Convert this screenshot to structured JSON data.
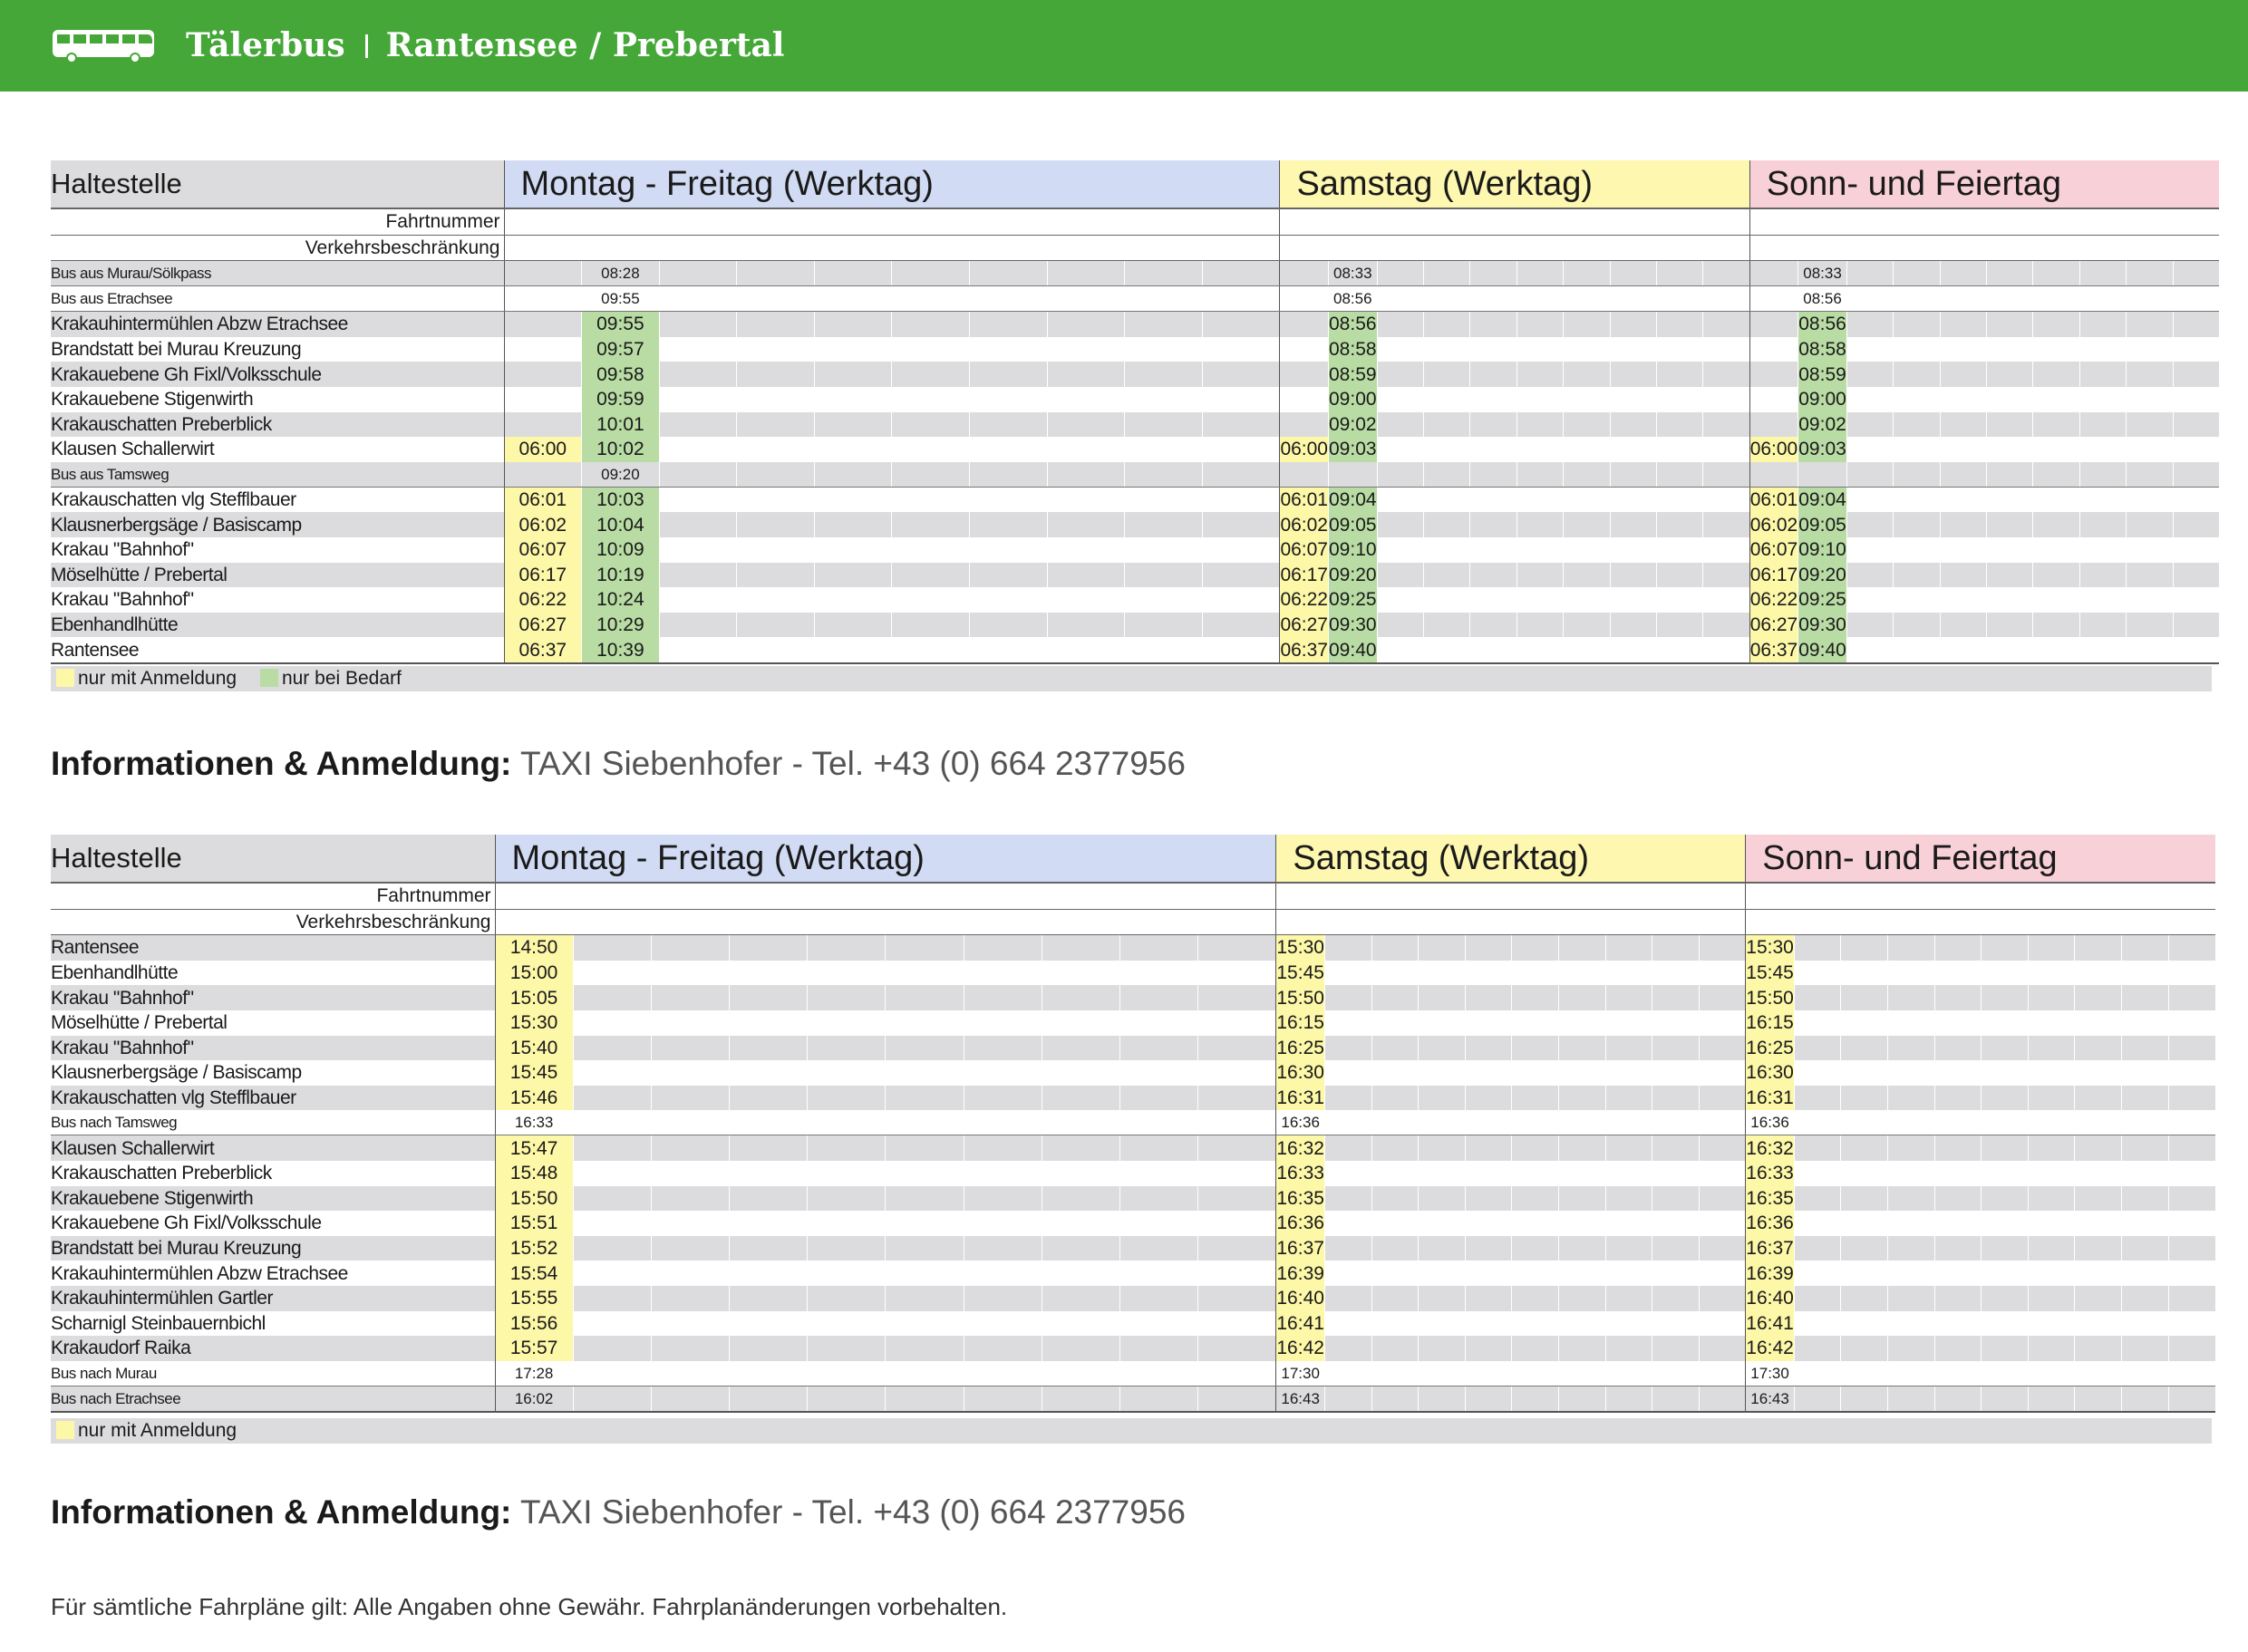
{
  "header": {
    "brand": "Tälerbus",
    "route": "Rantensee / Prebertal"
  },
  "colors": {
    "green": "#44a737",
    "mf": "#d2dbf4",
    "sa": "#fdf7b0",
    "so": "#f8d0d8",
    "yellow": "#fdf7a8",
    "lightgreen": "#b9dca4"
  },
  "labels": {
    "haltestelle": "Haltestelle",
    "fahrtnummer": "Fahrtnummer",
    "verkehrsbeschraenkung": "Verkehrsbeschränkung"
  },
  "days": {
    "mf": "Montag - Freitag (Werktag)",
    "sa": "Samstag (Werktag)",
    "so": "Sonn- und Feiertag"
  },
  "table1": {
    "rows": [
      {
        "stop": "Bus aus Murau/Sölkpass",
        "kind": "bus",
        "mf": [
          "",
          "08:28"
        ],
        "sa": [
          "",
          "08:33"
        ],
        "so": [
          "",
          "08:33"
        ]
      },
      {
        "stop": "Bus aus Etrachsee",
        "kind": "bus",
        "mf": [
          "",
          "09:55"
        ],
        "sa": [
          "",
          "08:56"
        ],
        "so": [
          "",
          "08:56"
        ]
      },
      {
        "stop": "Krakauhintermühlen Abzw Etrachsee",
        "kind": "stop",
        "mf": [
          "",
          "09:55"
        ],
        "sa": [
          "",
          "08:56"
        ],
        "so": [
          "",
          "08:56"
        ]
      },
      {
        "stop": "Brandstatt bei Murau Kreuzung",
        "kind": "stop",
        "mf": [
          "",
          "09:57"
        ],
        "sa": [
          "",
          "08:58"
        ],
        "so": [
          "",
          "08:58"
        ]
      },
      {
        "stop": "Krakauebene Gh Fixl/Volksschule",
        "kind": "stop",
        "mf": [
          "",
          "09:58"
        ],
        "sa": [
          "",
          "08:59"
        ],
        "so": [
          "",
          "08:59"
        ]
      },
      {
        "stop": "Krakauebene Stigenwirth",
        "kind": "stop",
        "mf": [
          "",
          "09:59"
        ],
        "sa": [
          "",
          "09:00"
        ],
        "so": [
          "",
          "09:00"
        ]
      },
      {
        "stop": "Krakauschatten Preberblick",
        "kind": "stop",
        "mf": [
          "",
          "10:01"
        ],
        "sa": [
          "",
          "09:02"
        ],
        "so": [
          "",
          "09:02"
        ]
      },
      {
        "stop": "Klausen Schallerwirt",
        "kind": "stop",
        "mf": [
          "06:00",
          "10:02"
        ],
        "sa": [
          "06:00",
          "09:03"
        ],
        "so": [
          "06:00",
          "09:03"
        ]
      },
      {
        "stop": "Bus aus Tamsweg",
        "kind": "bus",
        "mf": [
          "",
          "09:20"
        ],
        "sa": [
          "",
          ""
        ],
        "so": [
          "",
          ""
        ]
      },
      {
        "stop": "Krakauschatten vlg Stefflbauer",
        "kind": "stop",
        "mf": [
          "06:01",
          "10:03"
        ],
        "sa": [
          "06:01",
          "09:04"
        ],
        "so": [
          "06:01",
          "09:04"
        ]
      },
      {
        "stop": "Klausnerbergsäge / Basiscamp",
        "kind": "stop",
        "mf": [
          "06:02",
          "10:04"
        ],
        "sa": [
          "06:02",
          "09:05"
        ],
        "so": [
          "06:02",
          "09:05"
        ]
      },
      {
        "stop": "Krakau \"Bahnhof\"",
        "kind": "stop",
        "mf": [
          "06:07",
          "10:09"
        ],
        "sa": [
          "06:07",
          "09:10"
        ],
        "so": [
          "06:07",
          "09:10"
        ]
      },
      {
        "stop": "Möselhütte / Prebertal",
        "kind": "stop",
        "mf": [
          "06:17",
          "10:19"
        ],
        "sa": [
          "06:17",
          "09:20"
        ],
        "so": [
          "06:17",
          "09:20"
        ]
      },
      {
        "stop": "Krakau \"Bahnhof\"",
        "kind": "stop",
        "mf": [
          "06:22",
          "10:24"
        ],
        "sa": [
          "06:22",
          "09:25"
        ],
        "so": [
          "06:22",
          "09:25"
        ]
      },
      {
        "stop": "Ebenhandlhütte",
        "kind": "stop",
        "mf": [
          "06:27",
          "10:29"
        ],
        "sa": [
          "06:27",
          "09:30"
        ],
        "so": [
          "06:27",
          "09:30"
        ]
      },
      {
        "stop": "Rantensee",
        "kind": "stop",
        "mf": [
          "06:37",
          "10:39"
        ],
        "sa": [
          "06:37",
          "09:40"
        ],
        "so": [
          "06:37",
          "09:40"
        ]
      }
    ],
    "legend": {
      "anmeldung": "nur mit Anmeldung",
      "bedarf": "nur bei Bedarf"
    }
  },
  "info": {
    "label": "Informationen & Anmeldung:",
    "text": "TAXI Siebenhofer  -  Tel. +43 (0) 664 2377956"
  },
  "table2": {
    "rows": [
      {
        "stop": "Rantensee",
        "kind": "stop",
        "mf": "14:50",
        "sa": "15:30",
        "so": "15:30"
      },
      {
        "stop": "Ebenhandlhütte",
        "kind": "stop",
        "mf": "15:00",
        "sa": "15:45",
        "so": "15:45"
      },
      {
        "stop": "Krakau \"Bahnhof\"",
        "kind": "stop",
        "mf": "15:05",
        "sa": "15:50",
        "so": "15:50"
      },
      {
        "stop": "Möselhütte / Prebertal",
        "kind": "stop",
        "mf": "15:30",
        "sa": "16:15",
        "so": "16:15"
      },
      {
        "stop": "Krakau \"Bahnhof\"",
        "kind": "stop",
        "mf": "15:40",
        "sa": "16:25",
        "so": "16:25"
      },
      {
        "stop": "Klausnerbergsäge / Basiscamp",
        "kind": "stop",
        "mf": "15:45",
        "sa": "16:30",
        "so": "16:30"
      },
      {
        "stop": "Krakauschatten vlg Stefflbauer",
        "kind": "stop",
        "mf": "15:46",
        "sa": "16:31",
        "so": "16:31"
      },
      {
        "stop": "Bus nach Tamsweg",
        "kind": "bus",
        "mf": "16:33",
        "sa": "16:36",
        "so": "16:36"
      },
      {
        "stop": "Klausen Schallerwirt",
        "kind": "stop",
        "mf": "15:47",
        "sa": "16:32",
        "so": "16:32"
      },
      {
        "stop": "Krakauschatten Preberblick",
        "kind": "stop",
        "mf": "15:48",
        "sa": "16:33",
        "so": "16:33"
      },
      {
        "stop": "Krakauebene Stigenwirth",
        "kind": "stop",
        "mf": "15:50",
        "sa": "16:35",
        "so": "16:35"
      },
      {
        "stop": "Krakauebene Gh Fixl/Volksschule",
        "kind": "stop",
        "mf": "15:51",
        "sa": "16:36",
        "so": "16:36"
      },
      {
        "stop": "Brandstatt bei Murau Kreuzung",
        "kind": "stop",
        "mf": "15:52",
        "sa": "16:37",
        "so": "16:37"
      },
      {
        "stop": "Krakauhintermühlen Abzw Etrachsee",
        "kind": "stop",
        "mf": "15:54",
        "sa": "16:39",
        "so": "16:39"
      },
      {
        "stop": "Krakauhintermühlen Gartler",
        "kind": "stop",
        "mf": "15:55",
        "sa": "16:40",
        "so": "16:40"
      },
      {
        "stop": "Scharnigl Steinbauernbichl",
        "kind": "stop",
        "mf": "15:56",
        "sa": "16:41",
        "so": "16:41"
      },
      {
        "stop": "Krakaudorf Raika",
        "kind": "stop",
        "mf": "15:57",
        "sa": "16:42",
        "so": "16:42"
      },
      {
        "stop": "Bus nach Murau",
        "kind": "bus",
        "mf": "17:28",
        "sa": "17:30",
        "so": "17:30"
      },
      {
        "stop": "Bus nach Etrachsee",
        "kind": "bus",
        "mf": "16:02",
        "sa": "16:43",
        "so": "16:43"
      }
    ],
    "legend": {
      "anmeldung": "nur mit Anmeldung"
    }
  },
  "footer": "Für sämtliche Fahrpläne gilt: Alle Angaben ohne Gewähr. Fahrplanänderungen vorbehalten."
}
